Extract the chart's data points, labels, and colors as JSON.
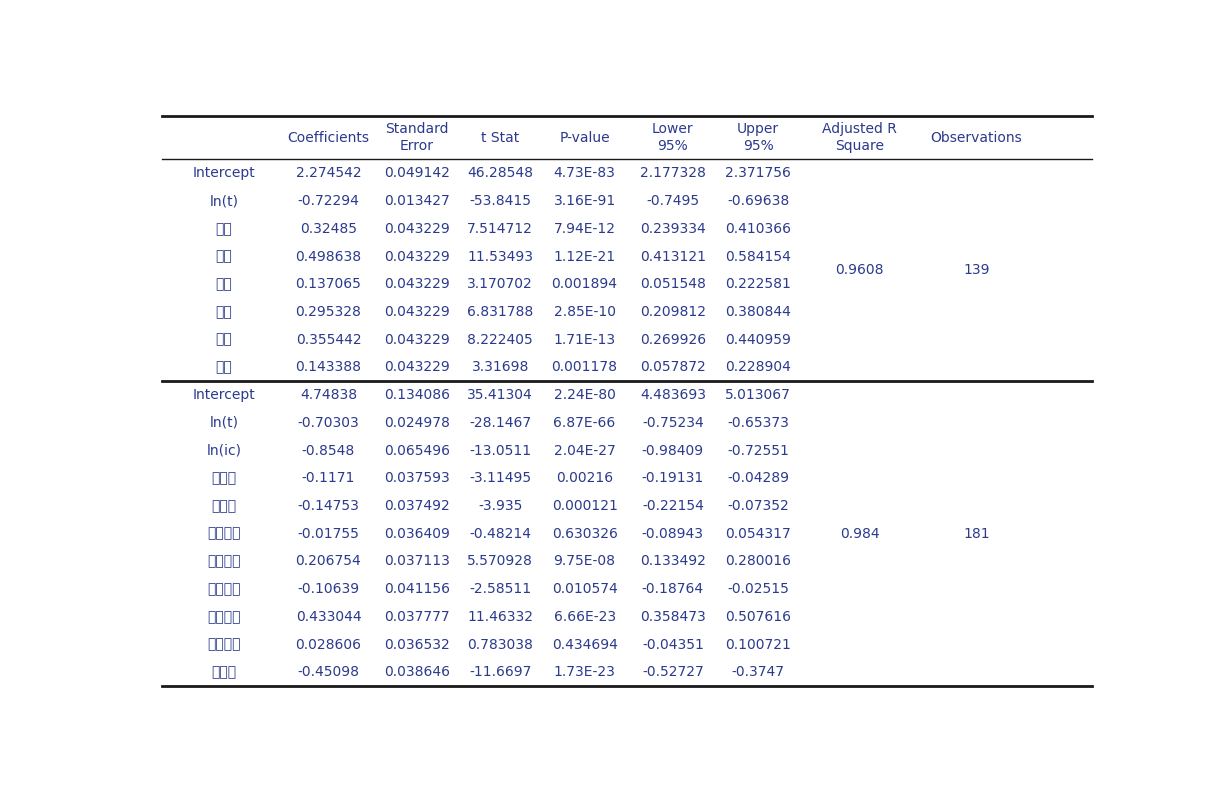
{
  "columns": [
    "",
    "Coefficients",
    "Standard\nError",
    "t Stat",
    "P-value",
    "Lower\n95%",
    "Upper\n95%",
    "Adjusted R\nSquare",
    "Observations"
  ],
  "section1": [
    [
      "Intercept",
      "2.274542",
      "0.049142",
      "46.28548",
      "4.73E-83",
      "2.177328",
      "2.371756",
      "",
      ""
    ],
    [
      "ln(t)",
      "-0.72294",
      "0.013427",
      "-53.8415",
      "3.16E-91",
      "-0.7495",
      "-0.69638",
      "",
      ""
    ],
    [
      "서울",
      "0.32485",
      "0.043229",
      "7.514712",
      "7.94E-12",
      "0.239334",
      "0.410366",
      "",
      ""
    ],
    [
      "부산",
      "0.498638",
      "0.043229",
      "11.53493",
      "1.12E-21",
      "0.413121",
      "0.584154",
      "",
      ""
    ],
    [
      "대구",
      "0.137065",
      "0.043229",
      "3.170702",
      "0.001894",
      "0.051548",
      "0.222581",
      "",
      ""
    ],
    [
      "인천",
      "0.295328",
      "0.043229",
      "6.831788",
      "2.85E-10",
      "0.209812",
      "0.380844",
      "",
      ""
    ],
    [
      "광주",
      "0.355442",
      "0.043229",
      "8.222405",
      "1.71E-13",
      "0.269926",
      "0.440959",
      "",
      ""
    ],
    [
      "대전",
      "0.143388",
      "0.043229",
      "3.31698",
      "0.001178",
      "0.057872",
      "0.228904",
      "",
      ""
    ]
  ],
  "section1_adjr": "0.9608",
  "section1_obs": "139",
  "section2": [
    [
      "Intercept",
      "4.74838",
      "0.134086",
      "35.41304",
      "2.24E-80",
      "4.483693",
      "5.013067",
      "",
      ""
    ],
    [
      "ln(t)",
      "-0.70303",
      "0.024978",
      "-28.1467",
      "6.87E-66",
      "-0.75234",
      "-0.65373",
      "",
      ""
    ],
    [
      "ln(ic)",
      "-0.8548",
      "0.065496",
      "-13.0511",
      "2.04E-27",
      "-0.98409",
      "-0.72551",
      "",
      ""
    ],
    [
      "경기도",
      "-0.1171",
      "0.037593",
      "-3.11495",
      "0.00216",
      "-0.19131",
      "-0.04289",
      "",
      ""
    ],
    [
      "강원도",
      "-0.14753",
      "0.037492",
      "-3.935",
      "0.000121",
      "-0.22154",
      "-0.07352",
      "",
      ""
    ],
    [
      "충청북도",
      "-0.01755",
      "0.036409",
      "-0.48214",
      "0.630326",
      "-0.08943",
      "0.054317",
      "",
      ""
    ],
    [
      "충청남도",
      "0.206754",
      "0.037113",
      "5.570928",
      "9.75E-08",
      "0.133492",
      "0.280016",
      "",
      ""
    ],
    [
      "전라북도",
      "-0.10639",
      "0.041156",
      "-2.58511",
      "0.010574",
      "-0.18764",
      "-0.02515",
      "",
      ""
    ],
    [
      "전라남도",
      "0.433044",
      "0.037777",
      "11.46332",
      "6.66E-23",
      "0.358473",
      "0.507616",
      "",
      ""
    ],
    [
      "경상북도",
      "0.028606",
      "0.036532",
      "0.783038",
      "0.434694",
      "-0.04351",
      "0.100721",
      "",
      ""
    ],
    [
      "제주도",
      "-0.45098",
      "0.038646",
      "-11.6697",
      "1.73E-23",
      "-0.52727",
      "-0.3747",
      "",
      ""
    ]
  ],
  "section2_adjr": "0.984",
  "section2_obs": "181",
  "text_color": "#2b3a8c",
  "line_color": "#1a1a1a",
  "bg_color": "#ffffff",
  "font_size": 10,
  "header_font_size": 10
}
